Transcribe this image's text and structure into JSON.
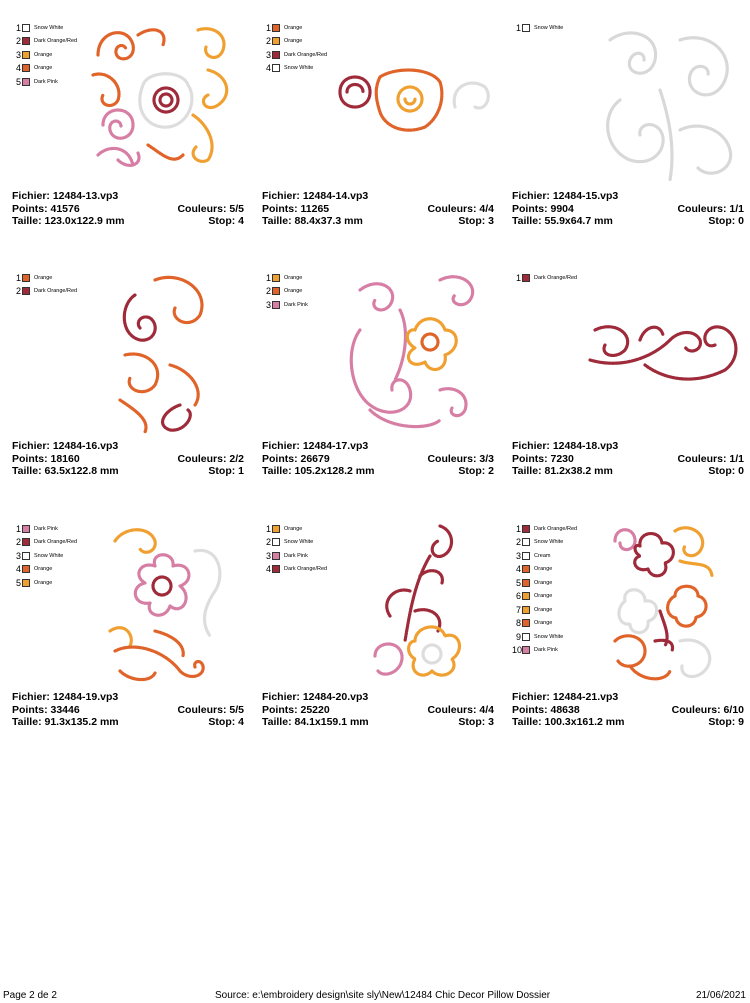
{
  "designs": [
    {
      "colors": [
        {
          "num": "1",
          "name": "Snow White",
          "hex": "#ffffff"
        },
        {
          "num": "2",
          "name": "Dark Orange/Red",
          "hex": "#9e2a3a"
        },
        {
          "num": "3",
          "name": "Orange",
          "hex": "#f0a030"
        },
        {
          "num": "4",
          "name": "Orange",
          "hex": "#e0642a"
        },
        {
          "num": "5",
          "name": "Dark Pink",
          "hex": "#d77ea5"
        }
      ],
      "info": {
        "fichier": "Fichier: 12484-13.vp3",
        "points": "Points: 41576",
        "taille": "Taille: 123.0x122.9 mm",
        "couleurs": "Couleurs: 5/5",
        "stop": "Stop: 4"
      }
    },
    {
      "colors": [
        {
          "num": "1",
          "name": "Orange",
          "hex": "#e0642a"
        },
        {
          "num": "2",
          "name": "Orange",
          "hex": "#f0a030"
        },
        {
          "num": "3",
          "name": "Dark Orange/Red",
          "hex": "#9e2a3a"
        },
        {
          "num": "4",
          "name": "Snow White",
          "hex": "#ffffff"
        }
      ],
      "info": {
        "fichier": "Fichier: 12484-14.vp3",
        "points": "Points: 11265",
        "taille": "Taille: 88.4x37.3 mm",
        "couleurs": "Couleurs: 4/4",
        "stop": "Stop: 3"
      }
    },
    {
      "colors": [
        {
          "num": "1",
          "name": "Snow White",
          "hex": "#ffffff"
        }
      ],
      "info": {
        "fichier": "Fichier: 12484-15.vp3",
        "points": "Points: 9904",
        "taille": "Taille: 55.9x64.7 mm",
        "couleurs": "Couleurs: 1/1",
        "stop": "Stop: 0"
      }
    },
    {
      "colors": [
        {
          "num": "1",
          "name": "Orange",
          "hex": "#e0642a"
        },
        {
          "num": "2",
          "name": "Dark Orange/Red",
          "hex": "#9e2a3a"
        }
      ],
      "info": {
        "fichier": "Fichier: 12484-16.vp3",
        "points": "Points: 18160",
        "taille": "Taille: 63.5x122.8 mm",
        "couleurs": "Couleurs: 2/2",
        "stop": "Stop: 1"
      }
    },
    {
      "colors": [
        {
          "num": "1",
          "name": "Orange",
          "hex": "#f0a030"
        },
        {
          "num": "2",
          "name": "Orange",
          "hex": "#e0642a"
        },
        {
          "num": "3",
          "name": "Dark Pink",
          "hex": "#d77ea5"
        }
      ],
      "info": {
        "fichier": "Fichier: 12484-17.vp3",
        "points": "Points: 26679",
        "taille": "Taille: 105.2x128.2 mm",
        "couleurs": "Couleurs: 3/3",
        "stop": "Stop: 2"
      }
    },
    {
      "colors": [
        {
          "num": "1",
          "name": "Dark Orange/Red",
          "hex": "#9e2a3a"
        }
      ],
      "info": {
        "fichier": "Fichier: 12484-18.vp3",
        "points": "Points: 7230",
        "taille": "Taille: 81.2x38.2 mm",
        "couleurs": "Couleurs: 1/1",
        "stop": "Stop: 0"
      }
    },
    {
      "colors": [
        {
          "num": "1",
          "name": "Dark Pink",
          "hex": "#d77ea5"
        },
        {
          "num": "2",
          "name": "Dark Orange/Red",
          "hex": "#9e2a3a"
        },
        {
          "num": "3",
          "name": "Snow White",
          "hex": "#ffffff"
        },
        {
          "num": "4",
          "name": "Orange",
          "hex": "#e0642a"
        },
        {
          "num": "5",
          "name": "Orange",
          "hex": "#f0a030"
        }
      ],
      "info": {
        "fichier": "Fichier: 12484-19.vp3",
        "points": "Points: 33446",
        "taille": "Taille: 91.3x135.2 mm",
        "couleurs": "Couleurs: 5/5",
        "stop": "Stop: 4"
      }
    },
    {
      "colors": [
        {
          "num": "1",
          "name": "Orange",
          "hex": "#f0a030"
        },
        {
          "num": "2",
          "name": "Snow White",
          "hex": "#ffffff"
        },
        {
          "num": "3",
          "name": "Dark Pink",
          "hex": "#d77ea5"
        },
        {
          "num": "4",
          "name": "Dark Orange/Red",
          "hex": "#9e2a3a"
        }
      ],
      "info": {
        "fichier": "Fichier: 12484-20.vp3",
        "points": "Points: 25220",
        "taille": "Taille: 84.1x159.1 mm",
        "couleurs": "Couleurs: 4/4",
        "stop": "Stop: 3"
      }
    },
    {
      "colors": [
        {
          "num": "1",
          "name": "Dark Orange/Red",
          "hex": "#9e2a3a"
        },
        {
          "num": "2",
          "name": "Snow White",
          "hex": "#ffffff"
        },
        {
          "num": "3",
          "name": "Cream",
          "hex": "#ffffff"
        },
        {
          "num": "4",
          "name": "Orange",
          "hex": "#e0642a"
        },
        {
          "num": "5",
          "name": "Orange",
          "hex": "#e0642a"
        },
        {
          "num": "6",
          "name": "Orange",
          "hex": "#f0a030"
        },
        {
          "num": "7",
          "name": "Orange",
          "hex": "#f0a030"
        },
        {
          "num": "8",
          "name": "Orange",
          "hex": "#e0642a"
        },
        {
          "num": "9",
          "name": "Snow White",
          "hex": "#ffffff"
        },
        {
          "num": "10",
          "name": "Dark Pink",
          "hex": "#d77ea5"
        }
      ],
      "info": {
        "fichier": "Fichier: 12484-21.vp3",
        "points": "Points: 48638",
        "taille": "Taille: 100.3x161.2 mm",
        "couleurs": "Couleurs: 6/10",
        "stop": "Stop: 9"
      }
    }
  ],
  "footer": {
    "page": "Page 2 de 2",
    "source": "Source: e:\\embroidery design\\site sly\\New\\12484 Chic Decor Pillow Dossier",
    "date": "21/06/2021"
  }
}
